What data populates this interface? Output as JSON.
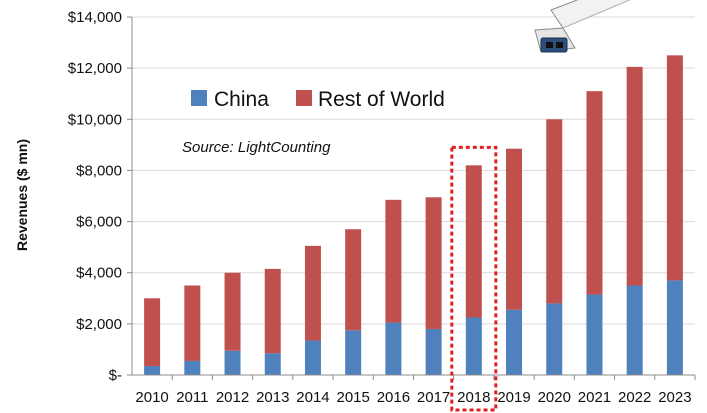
{
  "chart_data": {
    "type": "bar",
    "stacked": true,
    "categories": [
      "2010",
      "2011",
      "2012",
      "2013",
      "2014",
      "2015",
      "2016",
      "2017",
      "2018",
      "2019",
      "2020",
      "2021",
      "2022",
      "2023"
    ],
    "series": [
      {
        "name": "China",
        "values": [
          350,
          550,
          950,
          850,
          1350,
          1750,
          2050,
          1800,
          2250,
          2550,
          2800,
          3150,
          3500,
          3700
        ]
      },
      {
        "name": "Rest of World",
        "values": [
          2650,
          2950,
          3050,
          3300,
          3700,
          3950,
          4800,
          5150,
          5950,
          6300,
          7200,
          7950,
          8550,
          8800
        ]
      }
    ],
    "ylabel": "Revenues ($ mn)",
    "xlabel": "",
    "ylim": [
      0,
      14000
    ],
    "yticks": [
      {
        "value": 0,
        "label": "$-"
      },
      {
        "value": 2000,
        "label": "$2,000"
      },
      {
        "value": 4000,
        "label": "$4,000"
      },
      {
        "value": 6000,
        "label": "$6,000"
      },
      {
        "value": 8000,
        "label": "$8,000"
      },
      {
        "value": 10000,
        "label": "$10,000"
      },
      {
        "value": 12000,
        "label": "$12,000"
      },
      {
        "value": 14000,
        "label": "$14,000"
      }
    ],
    "legend_position": "top-left",
    "annotation": "Source: LightCounting",
    "highlighted_category": "2018",
    "grid": true,
    "colors": {
      "China": "#4f81bd",
      "Rest of World": "#c0504d",
      "highlight": "#e02020",
      "grid": "#d9d9d9",
      "axis": "#8c8c8c"
    }
  },
  "decor": {
    "image": "transceiver-module-icon"
  }
}
